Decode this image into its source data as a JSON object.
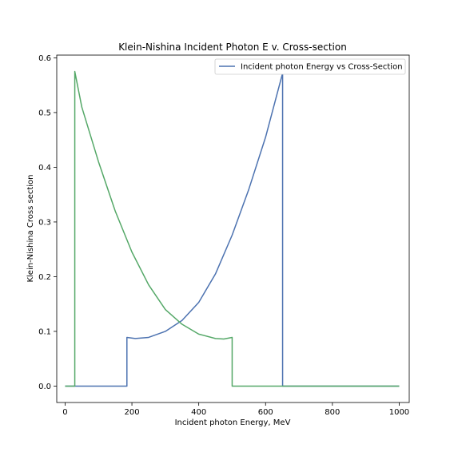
{
  "chart_data": {
    "type": "line",
    "title": "Klein-Nishina Incident Photon E v. Cross-section",
    "xlabel": "Incident photon Energy, MeV",
    "ylabel": "Klein-Nishina Cross section",
    "xlim": [
      -25,
      1030
    ],
    "ylim": [
      -0.03,
      0.605
    ],
    "x_ticks": [
      0,
      200,
      400,
      600,
      800,
      1000
    ],
    "x_tick_labels": [
      "0",
      "200",
      "400",
      "600",
      "800",
      "1000"
    ],
    "y_ticks": [
      0.0,
      0.1,
      0.2,
      0.3,
      0.4,
      0.5,
      0.6
    ],
    "y_tick_labels": [
      "0.0",
      "0.1",
      "0.2",
      "0.3",
      "0.4",
      "0.5",
      "0.6"
    ],
    "grid": false,
    "legend_position": "top-right",
    "series": [
      {
        "name": "Incident photon Energy vs Cross-Section",
        "color": "#4c72b0",
        "x": [
          0,
          185,
          185,
          210,
          250,
          300,
          350,
          400,
          450,
          500,
          550,
          600,
          651,
          651,
          1000
        ],
        "y": [
          0.0,
          0.0,
          0.089,
          0.087,
          0.089,
          0.1,
          0.12,
          0.153,
          0.205,
          0.276,
          0.36,
          0.455,
          0.572,
          0.0,
          0.0
        ]
      },
      {
        "name": "",
        "color": "#55a868",
        "x": [
          0,
          29,
          29,
          50,
          100,
          150,
          200,
          250,
          300,
          350,
          400,
          450,
          475,
          500,
          500,
          1000
        ],
        "y": [
          0.0,
          0.0,
          0.575,
          0.51,
          0.41,
          0.32,
          0.245,
          0.185,
          0.14,
          0.113,
          0.095,
          0.087,
          0.086,
          0.089,
          0.0,
          0.0
        ]
      }
    ]
  }
}
